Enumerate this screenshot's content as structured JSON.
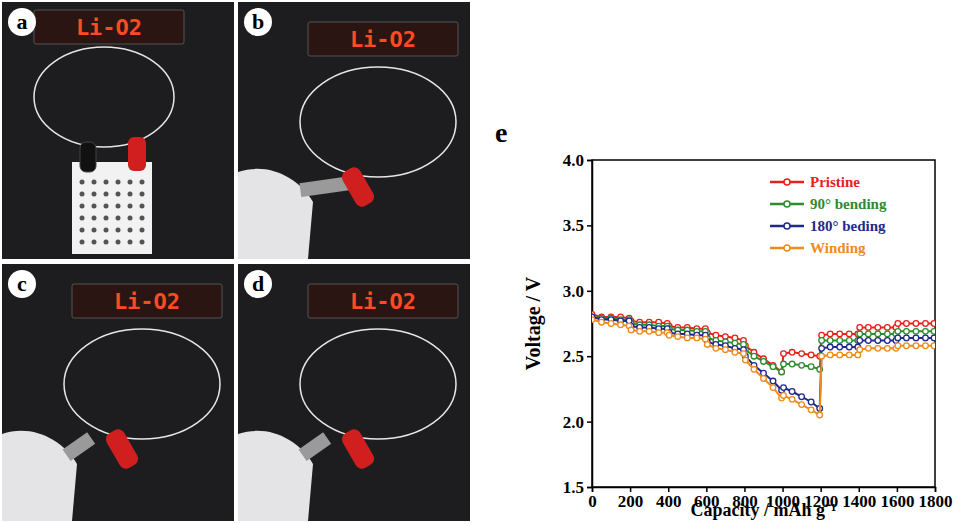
{
  "chart_data": {
    "type": "line",
    "panel_label": "e",
    "x_label": "Capacity / mAh g⁻¹",
    "y_label": "Voltage / V",
    "x": [
      0,
      50,
      100,
      150,
      195,
      205,
      250,
      300,
      350,
      395,
      405,
      450,
      500,
      550,
      595,
      605,
      650,
      700,
      750,
      795,
      805,
      850,
      900,
      950,
      995,
      1005,
      1050,
      1100,
      1150,
      1195,
      1205,
      1250,
      1300,
      1350,
      1395,
      1405,
      1450,
      1500,
      1550,
      1595,
      1605,
      1650,
      1700,
      1750,
      1795
    ],
    "xlim": [
      0,
      1800
    ],
    "xticks": [
      0,
      200,
      400,
      600,
      800,
      1000,
      1200,
      1400,
      1600,
      1800
    ],
    "ylim": [
      1.5,
      4.0
    ],
    "yticks": [
      1.5,
      {
        "value": 2,
        "label": "2.0"
      },
      2.5,
      {
        "value": 3,
        "label": "3.0"
      },
      3.5,
      {
        "value": 4,
        "label": "4.0"
      }
    ],
    "legend": "upper right",
    "marker": "circle",
    "series": [
      {
        "name": "Pristine",
        "color": "#e8201c",
        "values": [
          2.82,
          2.8,
          2.8,
          2.8,
          2.79,
          2.77,
          2.76,
          2.76,
          2.76,
          2.75,
          2.73,
          2.72,
          2.72,
          2.71,
          2.71,
          2.68,
          2.66,
          2.65,
          2.64,
          2.62,
          2.58,
          2.53,
          2.48,
          2.43,
          2.38,
          2.52,
          2.53,
          2.52,
          2.51,
          2.5,
          2.66,
          2.67,
          2.67,
          2.67,
          2.67,
          2.72,
          2.72,
          2.72,
          2.72,
          2.72,
          2.75,
          2.75,
          2.75,
          2.75,
          2.75
        ]
      },
      {
        "name": "90° bending",
        "color": "#2e8b2e",
        "values": [
          2.8,
          2.79,
          2.79,
          2.78,
          2.78,
          2.75,
          2.74,
          2.74,
          2.73,
          2.73,
          2.71,
          2.7,
          2.7,
          2.69,
          2.69,
          2.64,
          2.62,
          2.61,
          2.6,
          2.59,
          2.55,
          2.5,
          2.46,
          2.42,
          2.38,
          2.44,
          2.44,
          2.43,
          2.42,
          2.4,
          2.62,
          2.62,
          2.62,
          2.62,
          2.62,
          2.67,
          2.67,
          2.67,
          2.67,
          2.67,
          2.69,
          2.69,
          2.69,
          2.69,
          2.69
        ]
      },
      {
        "name": "180° beding",
        "color": "#1f2a8c",
        "values": [
          2.8,
          2.78,
          2.78,
          2.77,
          2.77,
          2.73,
          2.72,
          2.72,
          2.71,
          2.71,
          2.68,
          2.67,
          2.67,
          2.66,
          2.66,
          2.61,
          2.59,
          2.58,
          2.56,
          2.55,
          2.5,
          2.43,
          2.37,
          2.31,
          2.24,
          2.26,
          2.23,
          2.19,
          2.15,
          2.1,
          2.56,
          2.57,
          2.57,
          2.57,
          2.57,
          2.62,
          2.62,
          2.62,
          2.62,
          2.62,
          2.64,
          2.64,
          2.64,
          2.64,
          2.64
        ]
      },
      {
        "name": "Winding",
        "color": "#f08a1c",
        "values": [
          2.78,
          2.76,
          2.75,
          2.74,
          2.73,
          2.7,
          2.69,
          2.69,
          2.68,
          2.68,
          2.66,
          2.65,
          2.64,
          2.64,
          2.63,
          2.59,
          2.56,
          2.55,
          2.53,
          2.52,
          2.47,
          2.4,
          2.33,
          2.26,
          2.18,
          2.2,
          2.17,
          2.13,
          2.09,
          2.05,
          2.5,
          2.51,
          2.51,
          2.51,
          2.51,
          2.55,
          2.56,
          2.56,
          2.56,
          2.56,
          2.58,
          2.58,
          2.58,
          2.58,
          2.58
        ]
      }
    ]
  },
  "photos": [
    {
      "letter": "a",
      "display_text": "Li-O2"
    },
    {
      "letter": "b",
      "display_text": "Li-O2"
    },
    {
      "letter": "c",
      "display_text": "Li-O2"
    },
    {
      "letter": "d",
      "display_text": "Li-O2"
    }
  ]
}
